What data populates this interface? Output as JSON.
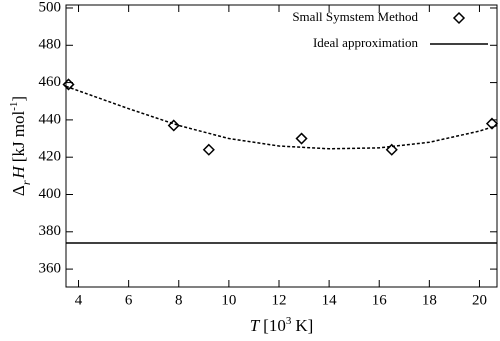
{
  "chart_data": {
    "type": "scatter",
    "x_label": {
      "symbol": "T",
      "open": "[10",
      "sup": "3",
      "unit": "K]"
    },
    "y_label": {
      "symbol": "Δ",
      "sub": "r",
      "var": "H",
      "unit": "[kJ mol",
      "sup": "-1",
      "close": "]"
    },
    "xlim": [
      3.5,
      20.7
    ],
    "ylim": [
      350.4,
      501.6
    ],
    "xticks": [
      4,
      6,
      8,
      10,
      12,
      14,
      16,
      18,
      20
    ],
    "yticks": [
      360,
      380,
      400,
      420,
      440,
      460,
      480,
      500
    ],
    "series": [
      {
        "name": "Small Symstem Method",
        "color": "#000000",
        "x": [
          3.6,
          7.8,
          9.2,
          12.9,
          16.5,
          20.5
        ],
        "values": [
          459,
          437,
          424,
          430,
          424,
          438
        ]
      },
      {
        "name": "Ideal approximation",
        "color": "#000000",
        "value": 374
      }
    ],
    "fit_curve": {
      "color": "#000000",
      "x": [
        3.5,
        6,
        8,
        10,
        12,
        14,
        16,
        18,
        20,
        20.7
      ],
      "values": [
        458,
        446,
        437,
        430,
        426,
        424.5,
        425,
        428,
        434,
        437
      ]
    }
  }
}
